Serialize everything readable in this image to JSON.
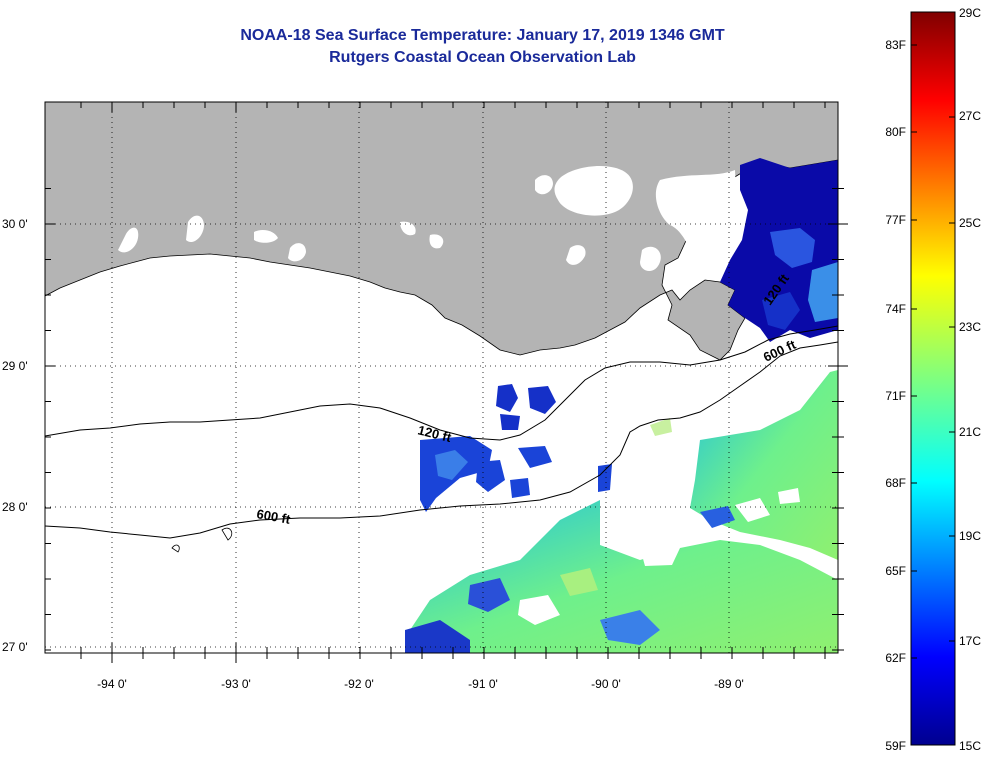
{
  "title": "NOAA-18 Sea Surface Temperature:  January 17, 2019 1346 GMT",
  "subtitle": "Rutgers Coastal Ocean Observation Lab",
  "map": {
    "lon_labels": [
      "-94 0'",
      "-93 0'",
      "-92 0'",
      "-91 0'",
      "-90 0'",
      "-89 0'"
    ],
    "lat_labels": [
      "30 0'",
      "29 0'",
      "28 0'",
      "27 0'"
    ],
    "contours": {
      "c120_a": "120 ft",
      "c600_a": "600 ft",
      "c120_b": "120 ft",
      "c600_b": "600 ft"
    },
    "colors": {
      "land": "#b4b4b4",
      "cloud": "#ffffff",
      "frame": "#000000"
    }
  },
  "colorbar": {
    "fahrenheit": [
      "83F",
      "80F",
      "77F",
      "74F",
      "71F",
      "68F",
      "65F",
      "62F",
      "59F"
    ],
    "celsius": [
      "29C",
      "27C",
      "25C",
      "23C",
      "21C",
      "19C",
      "17C",
      "15C"
    ]
  }
}
